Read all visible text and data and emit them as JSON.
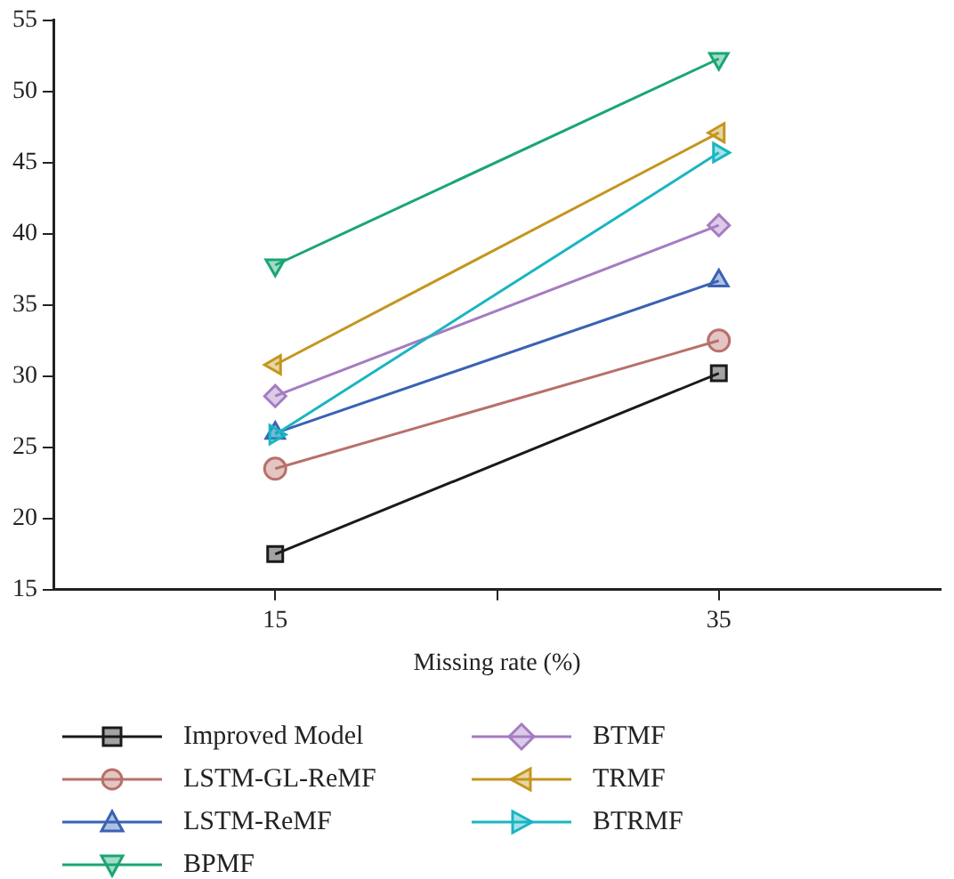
{
  "chart_data": {
    "type": "line",
    "xlabel": "Missing rate (%)",
    "x": [
      15,
      35
    ],
    "xlim": [
      5,
      45
    ],
    "xticks": [
      15,
      {
        "value": 25,
        "label": null
      },
      35
    ],
    "ylim": [
      15,
      55
    ],
    "yticks": [
      15,
      20,
      25,
      30,
      35,
      40,
      45,
      50,
      55
    ],
    "grid": false,
    "legend": "bottom",
    "line_style": "solid",
    "series": [
      {
        "name": "Improved Model",
        "color": "#1a1a1a",
        "marker": "square",
        "values": [
          17.5,
          30.2
        ]
      },
      {
        "name": "LSTM-GL-ReMF",
        "color": "#b8706a",
        "marker": "circle",
        "values": [
          23.5,
          32.5
        ]
      },
      {
        "name": "LSTM-ReMF",
        "color": "#3a62b4",
        "marker": "triangle",
        "values": [
          26.0,
          36.7
        ]
      },
      {
        "name": "BPMF",
        "color": "#1aa673",
        "marker": "triangle-down",
        "values": [
          37.8,
          52.3
        ]
      },
      {
        "name": "BTMF",
        "color": "#a57cc2",
        "marker": "diamond",
        "values": [
          28.6,
          40.6
        ]
      },
      {
        "name": "TRMF",
        "color": "#c4961e",
        "marker": "triangle-left",
        "values": [
          30.8,
          47.1
        ]
      },
      {
        "name": "BTRMF",
        "color": "#1ab5c2",
        "marker": "triangle-right",
        "values": [
          25.9,
          45.7
        ]
      }
    ]
  }
}
